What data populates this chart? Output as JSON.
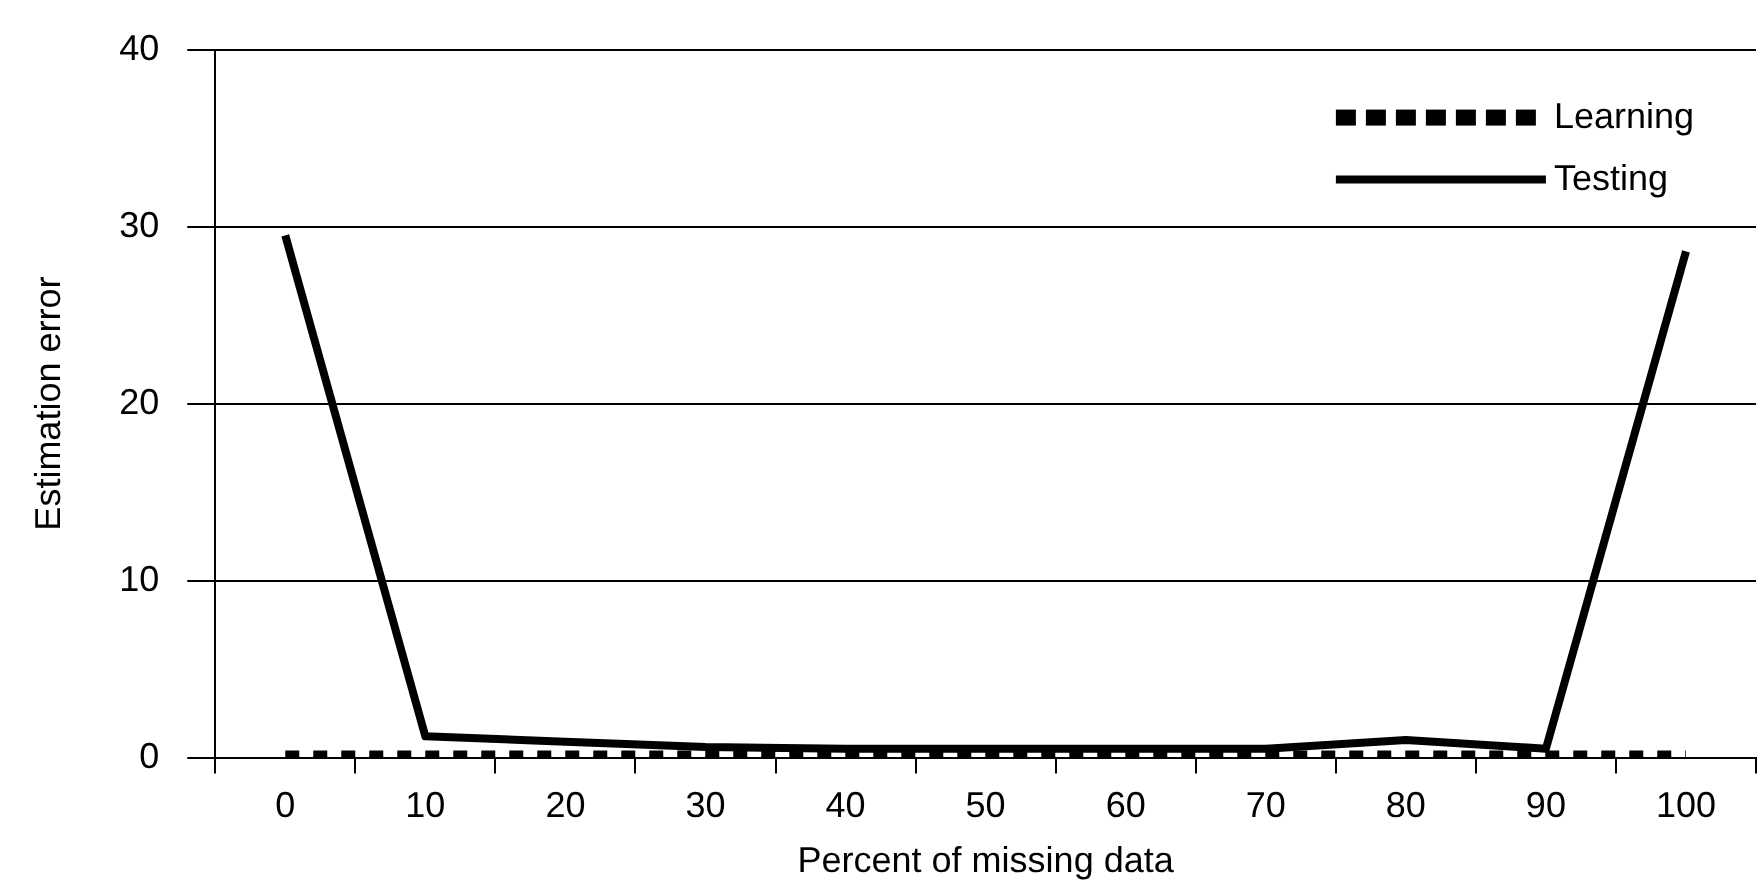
{
  "chart_data": {
    "type": "line",
    "xlabel": "Percent of missing data",
    "ylabel": "Estimation error",
    "categories": [
      "0",
      "10",
      "20",
      "30",
      "40",
      "50",
      "60",
      "70",
      "80",
      "90",
      "100"
    ],
    "series": [
      {
        "name": "Learning",
        "color": "#000000",
        "line_style": "dotted",
        "values": [
          0,
          0,
          0,
          0,
          0,
          0,
          0,
          0,
          0,
          0,
          0
        ]
      },
      {
        "name": "Testing",
        "color": "#000000",
        "line_style": "solid",
        "values": [
          29.5,
          1.2,
          0.9,
          0.6,
          0.5,
          0.5,
          0.5,
          0.5,
          1.0,
          0.5,
          28.6
        ]
      }
    ],
    "ylim": [
      0,
      40
    ],
    "yticks": [
      0,
      10,
      20,
      30,
      40
    ],
    "grid": "y",
    "legend": "top right",
    "marker": "none"
  }
}
